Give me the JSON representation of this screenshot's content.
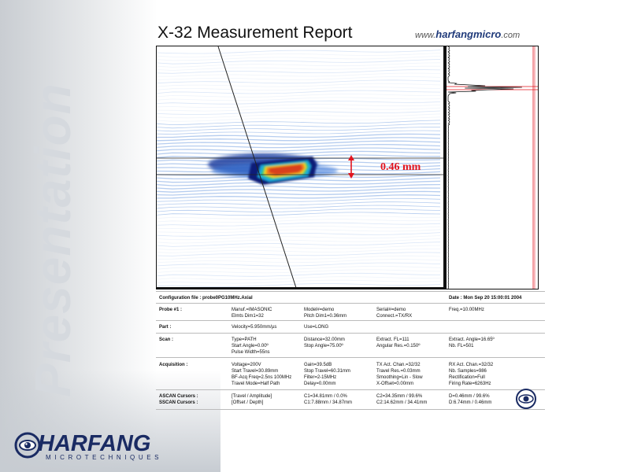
{
  "background_text": "Presentation",
  "logo": {
    "name": "HARFANG",
    "subtitle": "MICROTECHNIQUES"
  },
  "report": {
    "title": "X-32 Measurement Report",
    "website_prefix": "www.",
    "website_brand": "harfangmicro",
    "website_suffix": ".com"
  },
  "measurement": {
    "label": "0.46 mm"
  },
  "colors": {
    "accent_red": "#e2141e",
    "brand_navy": "#1a2b63",
    "scan_blue": "#1f5fcf"
  },
  "info": {
    "config_file": "Configuration file : probe0PG10MHz.Axial",
    "date": "Date : Mon Sep 20 15:00:01 2004",
    "probe": {
      "label": "Probe #1 :",
      "c1": [
        "Manuf.=IMASONIC",
        "Elmts Dim1=32"
      ],
      "c2": [
        "Model#=demo",
        "Pitch Dim1=0.36mm"
      ],
      "c3": [
        "Serial#=demo",
        "Connect.=TX/RX"
      ],
      "c4": [
        "Freq.=10.00MHz"
      ]
    },
    "part": {
      "label": "Part :",
      "c1": [
        "Velocity=5.950mm/µs"
      ],
      "c2": [
        "Use=LONG"
      ]
    },
    "scan": {
      "label": "Scan :",
      "c1": [
        "Type=PATH",
        "Start Angle=0.00º",
        "Pulse Width=55ns"
      ],
      "c2": [
        "Distance=32.00mm",
        "Stop Angle=75.00º"
      ],
      "c3": [
        "Extract. FL=111",
        "Angular Res.=0.150º"
      ],
      "c4": [
        "Extract. Angle=16.65º",
        "Nb. FL=501"
      ]
    },
    "acquisition": {
      "label": "Acquisition :",
      "c1": [
        "Voltage=200V",
        "Start Travel=30.89mm",
        "BF-Acq Freq=2.5ns 100MHz",
        "Travel Mode=Half Path"
      ],
      "c2": [
        "Gain=39.5dB",
        "Stop Travel=60.31mm",
        "Filter=2-15MHz",
        "Delay=0.00mm"
      ],
      "c3": [
        "TX Act. Chan.=32/32",
        "Travel Res.=0.03mm",
        "Smoothing=Lin - Slow",
        "X-Offset=0.00mm"
      ],
      "c4": [
        "RX Act. Chan.=32/32",
        "Nb. Samples=986",
        "Rectification=Full",
        "Firing Rate=6263Hz"
      ]
    },
    "ascan_cursors": {
      "label": "ASCAN Cursors :",
      "c1": "[Travel / Amplitude]",
      "c2": "C1=34.81mm / 0.0%",
      "c3": "C2=34.35mm / 99.6%",
      "c4": "D=0.46mm / 99.6%"
    },
    "sscan_cursors": {
      "label": "SSCAN Cursors :",
      "c1": "[Offset / Depth]",
      "c2": "C1:7.88mm / 34.87mm",
      "c3": "C2:14.62mm / 34.41mm",
      "c4": "D:6.74mm / 0.46mm"
    }
  }
}
